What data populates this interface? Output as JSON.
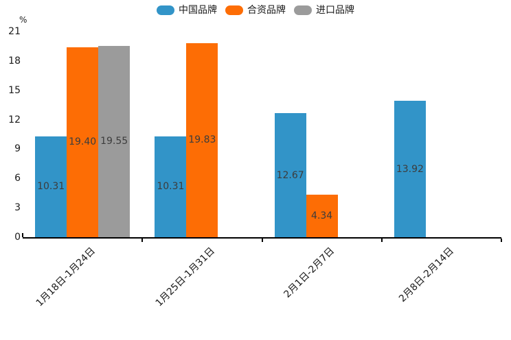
{
  "chart_data": {
    "type": "bar",
    "title": "",
    "ylabel": "%",
    "categories": [
      "1月18日-1月24日",
      "1月25日-1月31日",
      "2月1日-2月7日",
      "2月8日-2月14日"
    ],
    "series": [
      {
        "name": "中国品牌",
        "color": "#3294C8",
        "values": [
          10.31,
          10.31,
          12.67,
          13.92
        ]
      },
      {
        "name": "合资品牌",
        "color": "#FD6D05",
        "values": [
          19.4,
          19.83,
          4.34,
          null
        ]
      },
      {
        "name": "进口品牌",
        "color": "#9B9B9B",
        "values": [
          19.55,
          null,
          null,
          null
        ]
      }
    ],
    "ylim": [
      0,
      21
    ],
    "yticks": [
      0,
      3,
      6,
      9,
      12,
      15,
      18,
      21
    ],
    "legend_position": "top",
    "grid": false,
    "value_labels": true,
    "value_label_decimals": 2,
    "colors": {
      "axis": "#000000",
      "tick_text": "#1a1a1a",
      "bar_label_text": "#3c3c3c",
      "background": "#ffffff"
    }
  }
}
